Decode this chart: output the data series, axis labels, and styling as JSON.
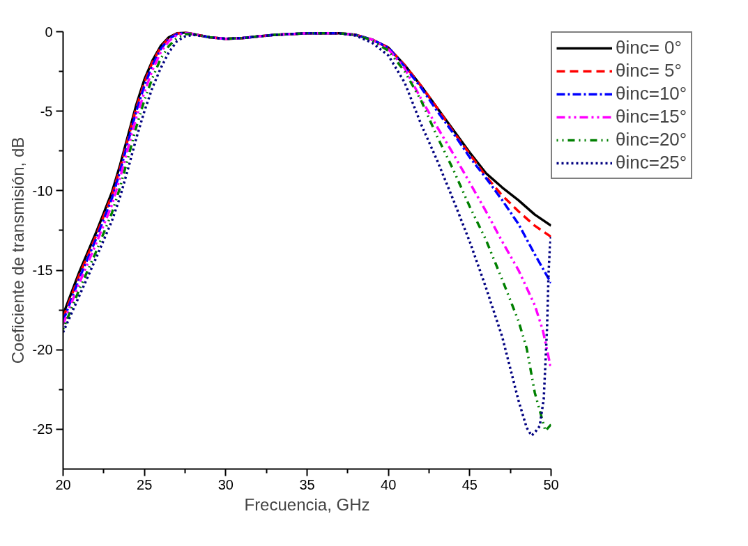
{
  "chart_data": {
    "type": "line",
    "xlabel": "Frecuencia, GHz",
    "ylabel": "Coeficiente de transmisión, dB",
    "xlim": [
      20,
      50
    ],
    "ylim": [
      -27.5,
      0
    ],
    "xticks": [
      20,
      {
        "value": 22.5,
        "label": null
      },
      25,
      {
        "value": 27.5,
        "label": null
      },
      30,
      {
        "value": 32.5,
        "label": null
      },
      35,
      {
        "value": 37.5,
        "label": null
      },
      40,
      {
        "value": 42.5,
        "label": null
      },
      45,
      {
        "value": 47.5,
        "label": null
      },
      50
    ],
    "yticks": [
      -25,
      {
        "value": -22.5,
        "label": null
      },
      -20,
      {
        "value": -17.5,
        "label": null
      },
      -15,
      {
        "value": -12.5,
        "label": null
      },
      -10,
      {
        "value": -7.5,
        "label": null
      },
      -5,
      {
        "value": -2.5,
        "label": null
      },
      0
    ],
    "grid": false,
    "legend": "top right",
    "series": [
      {
        "name": "θinc= 0°",
        "color": "#000000",
        "line_style": "solid",
        "x": [
          20,
          21,
          22,
          23,
          23.5,
          24,
          24.5,
          25,
          25.5,
          26,
          26.5,
          27,
          27.5,
          28,
          29,
          30,
          31,
          32,
          33,
          34,
          35,
          36,
          37,
          38,
          39,
          40,
          41,
          42,
          43,
          44,
          45,
          46,
          47,
          48,
          49,
          50
        ],
        "values": [
          -17.8,
          -15.1,
          -12.7,
          -10.1,
          -8.4,
          -6.5,
          -4.6,
          -3.0,
          -1.8,
          -0.9,
          -0.35,
          -0.1,
          -0.05,
          -0.15,
          -0.35,
          -0.45,
          -0.4,
          -0.3,
          -0.2,
          -0.15,
          -0.1,
          -0.1,
          -0.1,
          -0.2,
          -0.5,
          -1.0,
          -2.1,
          -3.4,
          -4.8,
          -6.2,
          -7.6,
          -8.9,
          -9.8,
          -10.6,
          -11.5,
          -12.2
        ]
      },
      {
        "name": "θinc= 5°",
        "color": "#ff0000",
        "line_style": "dashed",
        "x": [
          20,
          21,
          22,
          23,
          23.5,
          24,
          24.5,
          25,
          25.5,
          26,
          26.5,
          27,
          27.5,
          28,
          29,
          30,
          31,
          32,
          33,
          34,
          35,
          36,
          37,
          38,
          39,
          40,
          41,
          42,
          43,
          44,
          45,
          46,
          47,
          48,
          49,
          50
        ],
        "values": [
          -18.0,
          -15.3,
          -12.9,
          -10.3,
          -8.6,
          -6.7,
          -4.8,
          -3.2,
          -1.9,
          -1.0,
          -0.4,
          -0.12,
          -0.05,
          -0.15,
          -0.35,
          -0.45,
          -0.4,
          -0.3,
          -0.2,
          -0.15,
          -0.1,
          -0.1,
          -0.1,
          -0.2,
          -0.5,
          -1.0,
          -2.1,
          -3.4,
          -4.8,
          -6.3,
          -7.7,
          -9.1,
          -10.3,
          -11.3,
          -12.2,
          -12.9
        ]
      },
      {
        "name": "θinc=10°",
        "color": "#0000ff",
        "line_style": "dashdot",
        "x": [
          20,
          21,
          22,
          23,
          23.5,
          24,
          24.5,
          25,
          25.5,
          26,
          26.5,
          27,
          27.5,
          28,
          29,
          30,
          31,
          32,
          33,
          34,
          35,
          36,
          37,
          38,
          39,
          40,
          41,
          42,
          43,
          44,
          45,
          46,
          47,
          48,
          49,
          50
        ],
        "values": [
          -18.2,
          -15.5,
          -13.1,
          -10.5,
          -8.8,
          -6.9,
          -5.0,
          -3.4,
          -2.1,
          -1.1,
          -0.45,
          -0.15,
          -0.07,
          -0.15,
          -0.35,
          -0.45,
          -0.4,
          -0.3,
          -0.2,
          -0.15,
          -0.1,
          -0.1,
          -0.1,
          -0.2,
          -0.5,
          -1.0,
          -2.2,
          -3.5,
          -5.0,
          -6.4,
          -7.9,
          -9.2,
          -10.6,
          -12.1,
          -14.0,
          -15.8
        ]
      },
      {
        "name": "θinc=15°",
        "color": "#ff00ff",
        "line_style": "dashdotdot",
        "x": [
          20,
          21,
          22,
          23,
          23.5,
          24,
          24.5,
          25,
          25.5,
          26,
          26.5,
          27,
          27.5,
          28,
          29,
          30,
          31,
          32,
          33,
          34,
          35,
          36,
          37,
          38,
          39,
          40,
          41,
          42,
          43,
          44,
          45,
          46,
          47,
          48,
          49,
          49.5,
          50
        ],
        "values": [
          -18.4,
          -15.8,
          -13.4,
          -10.9,
          -9.2,
          -7.3,
          -5.4,
          -3.8,
          -2.4,
          -1.3,
          -0.6,
          -0.2,
          -0.1,
          -0.15,
          -0.35,
          -0.45,
          -0.4,
          -0.3,
          -0.2,
          -0.15,
          -0.1,
          -0.1,
          -0.1,
          -0.2,
          -0.5,
          -1.1,
          -2.3,
          -4.2,
          -6.0,
          -7.7,
          -9.5,
          -11.3,
          -13.2,
          -15.0,
          -17.2,
          -18.8,
          -21.2
        ]
      },
      {
        "name": "θinc=20°",
        "color": "#008000",
        "line_style": "shortdashdot",
        "x": [
          20,
          21,
          22,
          23,
          23.5,
          24,
          24.5,
          25,
          25.5,
          26,
          26.5,
          27,
          27.5,
          28,
          29,
          30,
          31,
          32,
          33,
          34,
          35,
          36,
          37,
          38,
          39,
          40,
          41,
          42,
          43,
          44,
          45,
          46,
          47,
          48,
          48.5,
          49,
          49.3,
          49.65,
          50
        ],
        "values": [
          -18.7,
          -16.2,
          -13.9,
          -11.4,
          -9.8,
          -7.9,
          -6.0,
          -4.3,
          -2.9,
          -1.7,
          -0.9,
          -0.4,
          -0.15,
          -0.15,
          -0.35,
          -0.45,
          -0.4,
          -0.3,
          -0.2,
          -0.15,
          -0.1,
          -0.1,
          -0.1,
          -0.2,
          -0.55,
          -1.2,
          -2.5,
          -4.3,
          -6.6,
          -8.7,
          -11.0,
          -13.1,
          -15.6,
          -18.2,
          -19.9,
          -22.7,
          -23.8,
          -25.1,
          -24.7
        ]
      },
      {
        "name": "θinc=25°",
        "color": "#000080",
        "line_style": "dotted",
        "x": [
          20,
          21,
          22,
          23,
          23.5,
          24,
          24.5,
          25,
          25.5,
          26,
          26.5,
          27,
          27.5,
          28,
          29,
          30,
          31,
          32,
          33,
          34,
          35,
          36,
          37,
          38,
          39,
          40,
          41,
          42,
          43,
          44,
          45,
          46,
          47,
          48,
          48.5,
          48.8,
          49,
          49.3,
          49.55,
          49.75,
          49.85,
          49.93,
          50
        ],
        "values": [
          -18.9,
          -16.6,
          -14.3,
          -11.9,
          -10.4,
          -8.6,
          -6.7,
          -5.0,
          -3.5,
          -2.3,
          -1.3,
          -0.6,
          -0.3,
          -0.2,
          -0.35,
          -0.45,
          -0.4,
          -0.3,
          -0.2,
          -0.15,
          -0.1,
          -0.1,
          -0.1,
          -0.25,
          -0.7,
          -1.5,
          -3.2,
          -5.8,
          -8.1,
          -10.6,
          -13.2,
          -16.1,
          -19.2,
          -23.2,
          -24.9,
          -25.4,
          -25.2,
          -24.8,
          -23.1,
          -18.7,
          -15.1,
          -13.5,
          -12.9
        ]
      }
    ]
  }
}
